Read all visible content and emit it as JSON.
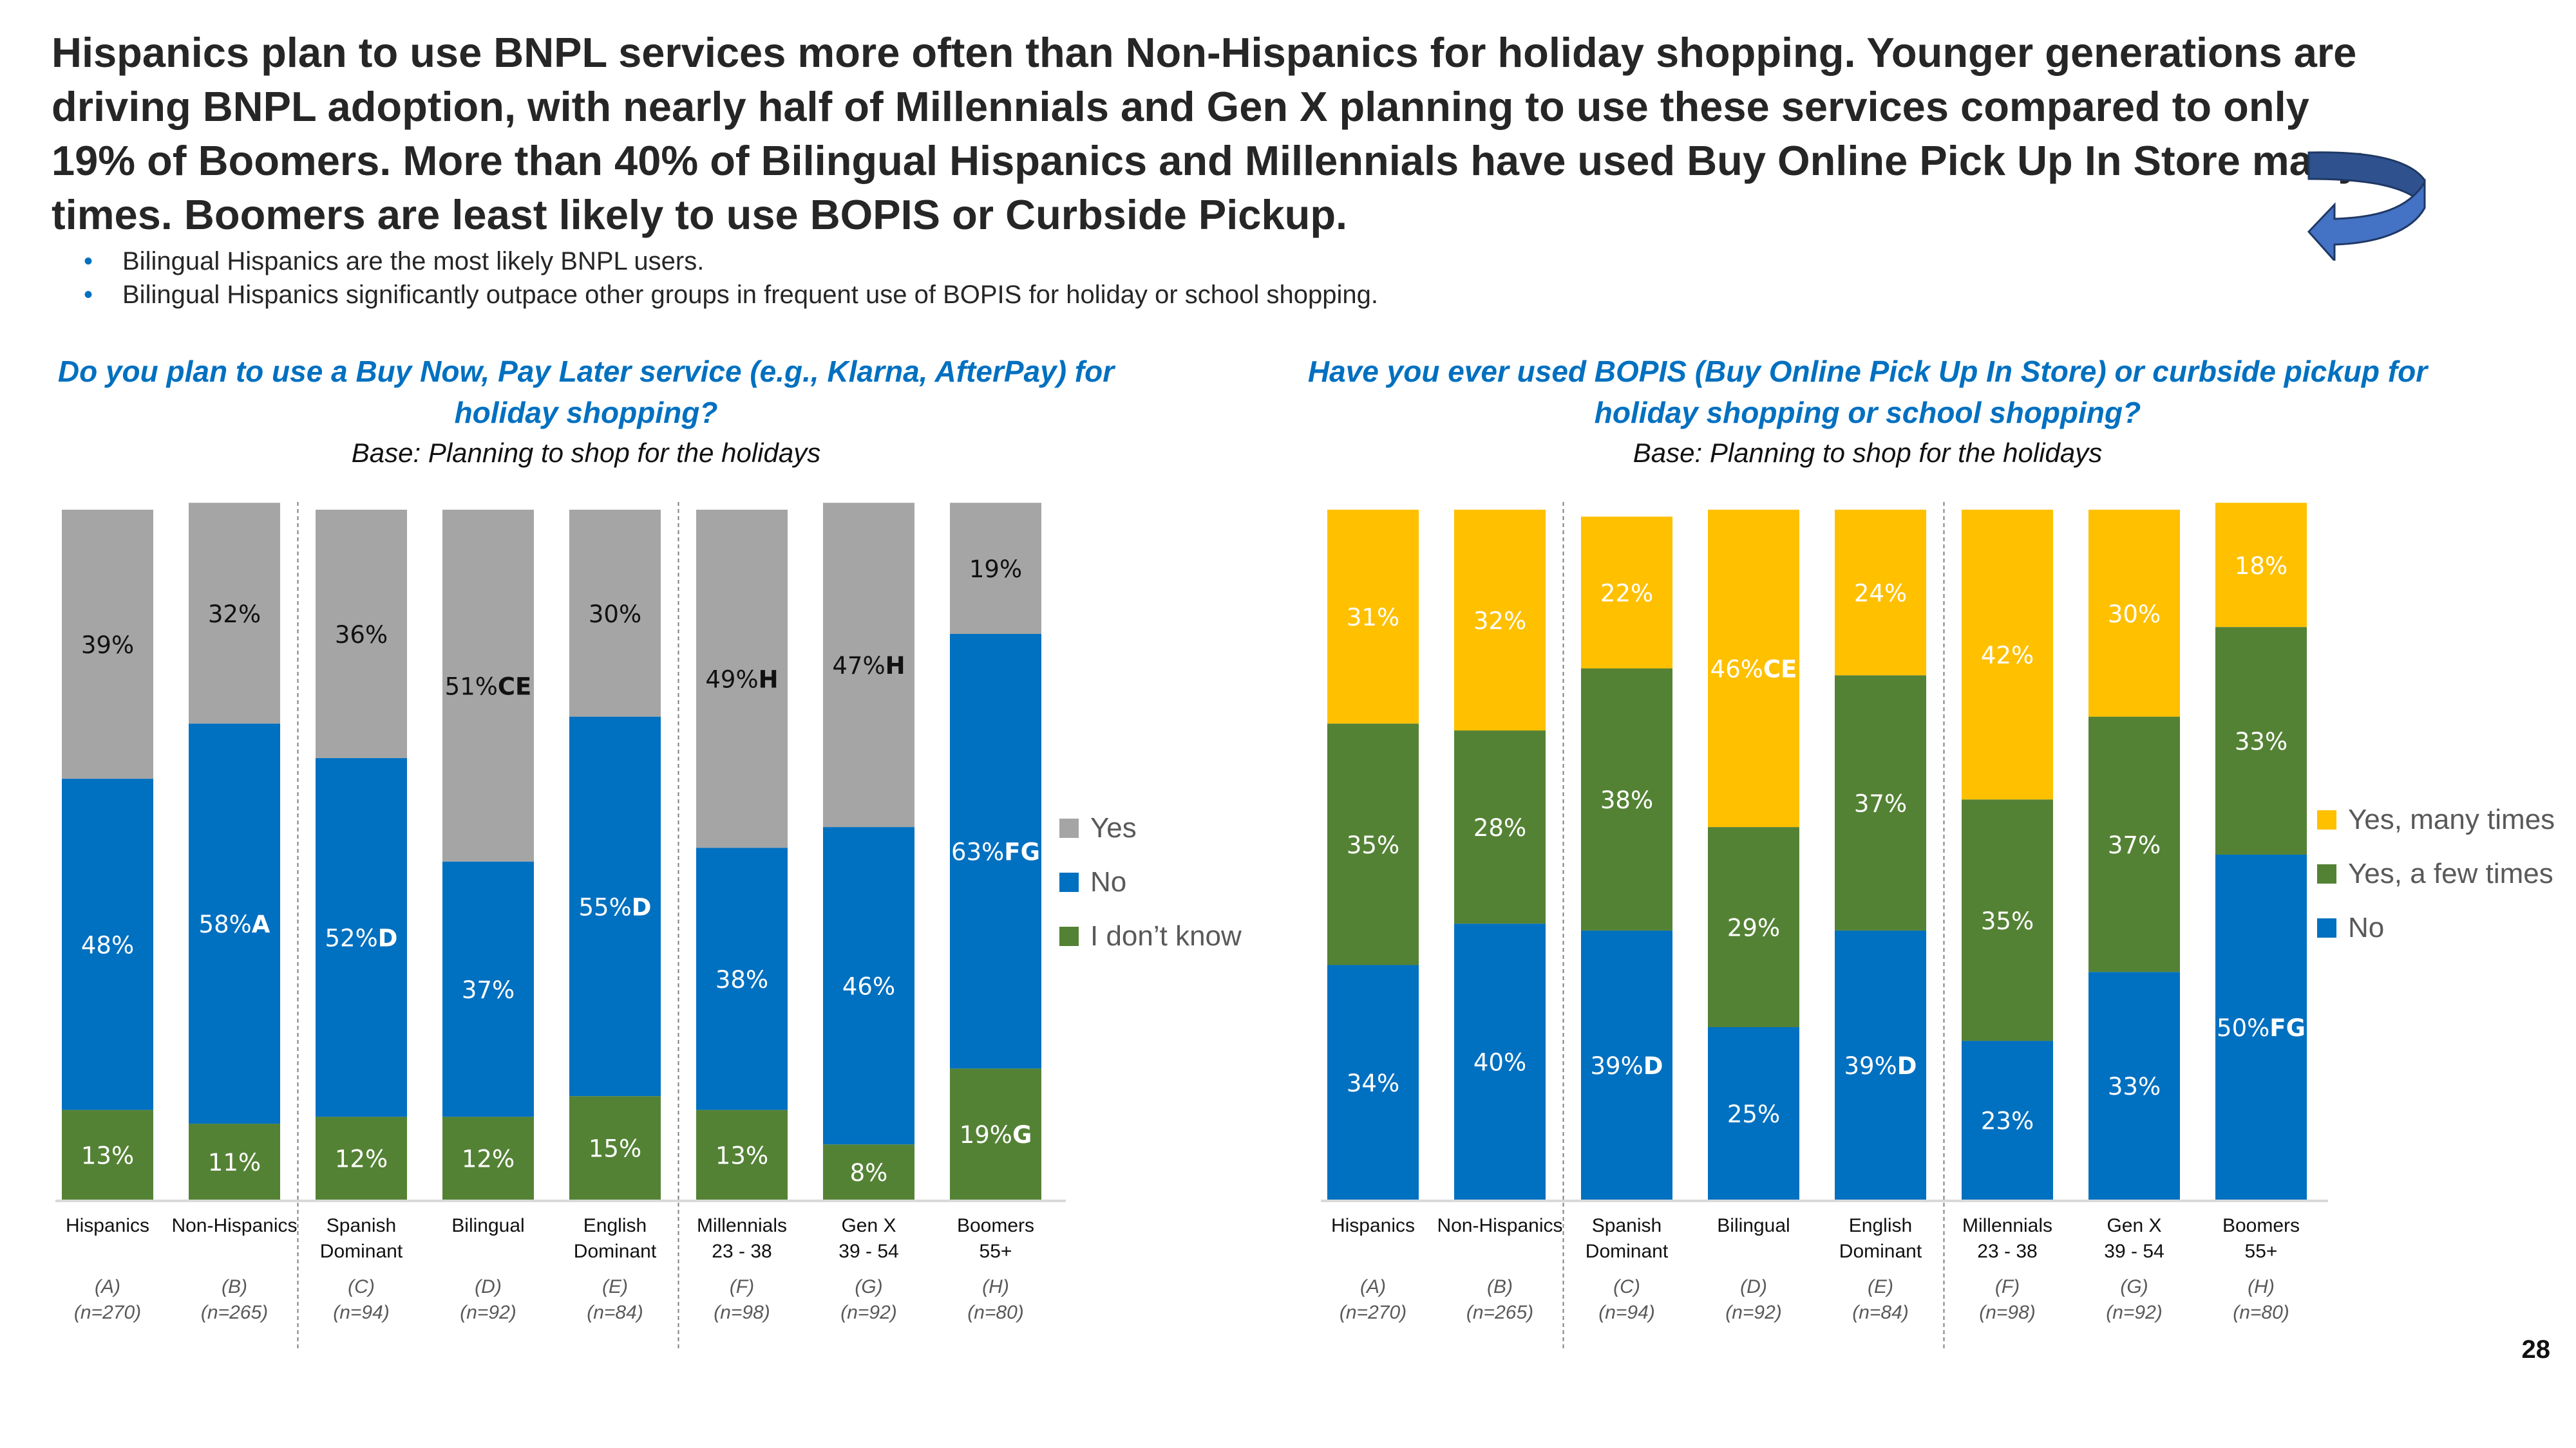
{
  "headline": "Hispanics plan to use BNPL services more often than Non-Hispanics for holiday shopping. Younger generations are driving BNPL adoption, with nearly half of Millennials and Gen X planning to use these services compared to only 19% of Boomers. More than 40% of Bilingual Hispanics and Millennials have used Buy Online Pick Up In Store many times. Boomers are least likely to use BOPIS or Curbside Pickup.",
  "bullets": [
    "Bilingual Hispanics are the most likely BNPL users.",
    "Bilingual Hispanics significantly outpace other groups in frequent use of BOPIS for holiday or school shopping."
  ],
  "bullet_glyph": "•",
  "page_number": "28",
  "colors": {
    "gray": "#a5a5a5",
    "blue": "#0070c0",
    "green": "#548235",
    "gold": "#ffc000",
    "title_blue": "#0070c0",
    "arrow_fill": "#4472c4",
    "arrow_dark": "#2f528f"
  },
  "categories": [
    {
      "name": "Hispanics",
      "line2": "",
      "code": "(A)",
      "n": "(n=270)"
    },
    {
      "name": "Non-Hispanics",
      "line2": "",
      "code": "(B)",
      "n": "(n=265)"
    },
    {
      "name": "Spanish",
      "line2": "Dominant",
      "code": "(C)",
      "n": "(n=94)"
    },
    {
      "name": "Bilingual",
      "line2": "",
      "code": "(D)",
      "n": "(n=92)"
    },
    {
      "name": "English",
      "line2": "Dominant",
      "code": "(E)",
      "n": "(n=84)"
    },
    {
      "name": "Millennials",
      "line2": "23 - 38",
      "code": "(F)",
      "n": "(n=98)"
    },
    {
      "name": "Gen X",
      "line2": "39 - 54",
      "code": "(G)",
      "n": "(n=92)"
    },
    {
      "name": "Boomers",
      "line2": "55+",
      "code": "(H)",
      "n": "(n=80)"
    }
  ],
  "chart_data": [
    {
      "type": "bar",
      "stacked": true,
      "percent_stacked": true,
      "title": "Do you plan to use a Buy Now, Pay Later service (e.g., Klarna, AfterPay) for holiday shopping?",
      "subtitle": "Base: Planning to shop for the holidays",
      "categories": [
        "Hispanics",
        "Non-Hispanics",
        "Spanish Dominant",
        "Bilingual",
        "English Dominant",
        "Millennials 23 - 38",
        "Gen X 39 - 54",
        "Boomers 55+"
      ],
      "group_separators_after": [
        1,
        4
      ],
      "legend_position": "right",
      "ylim": [
        0,
        100
      ],
      "series": [
        {
          "name": "I don't know",
          "legend_label": "I don’t know",
          "color": "#548235",
          "label_color": "#ffffff",
          "values": [
            13,
            11,
            12,
            12,
            15,
            13,
            8,
            19
          ],
          "sig": [
            "",
            "",
            "",
            "",
            "",
            "",
            "",
            "G"
          ]
        },
        {
          "name": "No",
          "legend_label": "No",
          "color": "#0070c0",
          "label_color": "#ffffff",
          "values": [
            48,
            58,
            52,
            37,
            55,
            38,
            46,
            63
          ],
          "sig": [
            "",
            "A",
            "D",
            "",
            "D",
            "",
            "",
            "FG"
          ]
        },
        {
          "name": "Yes",
          "legend_label": "Yes",
          "color": "#a5a5a5",
          "label_color": "#111111",
          "values": [
            39,
            32,
            36,
            51,
            30,
            49,
            47,
            19
          ],
          "sig": [
            "",
            "",
            "",
            "CE",
            "",
            "H",
            "H",
            ""
          ]
        }
      ],
      "legend_order": [
        "Yes",
        "No",
        "I don't know"
      ]
    },
    {
      "type": "bar",
      "stacked": true,
      "percent_stacked": true,
      "title": "Have you ever used BOPIS (Buy Online Pick Up In Store) or curbside pickup for holiday shopping or school shopping?",
      "subtitle": "Base: Planning to shop for the holidays",
      "categories": [
        "Hispanics",
        "Non-Hispanics",
        "Spanish Dominant",
        "Bilingual",
        "English Dominant",
        "Millennials 23 - 38",
        "Gen X 39 - 54",
        "Boomers 55+"
      ],
      "group_separators_after": [
        1,
        4
      ],
      "legend_position": "right",
      "ylim": [
        0,
        100
      ],
      "series": [
        {
          "name": "No",
          "legend_label": "No",
          "color": "#0070c0",
          "label_color": "#ffffff",
          "values": [
            34,
            40,
            39,
            25,
            39,
            23,
            33,
            50
          ],
          "sig": [
            "",
            "",
            "D",
            "",
            "D",
            "",
            "",
            "FG"
          ]
        },
        {
          "name": "Yes, a few times",
          "legend_label": "Yes, a few times",
          "color": "#548235",
          "label_color": "#ffffff",
          "values": [
            35,
            28,
            38,
            29,
            37,
            35,
            37,
            33
          ],
          "sig": [
            "",
            "",
            "",
            "",
            "",
            "",
            "",
            ""
          ]
        },
        {
          "name": "Yes, many times",
          "legend_label": "Yes, many times",
          "color": "#ffc000",
          "label_color": "#ffffff",
          "values": [
            31,
            32,
            22,
            46,
            24,
            42,
            30,
            18
          ],
          "sig": [
            "",
            "",
            "",
            "CE",
            "",
            "",
            "",
            ""
          ]
        }
      ],
      "legend_order": [
        "Yes, many times",
        "Yes, a few times",
        "No"
      ]
    }
  ]
}
